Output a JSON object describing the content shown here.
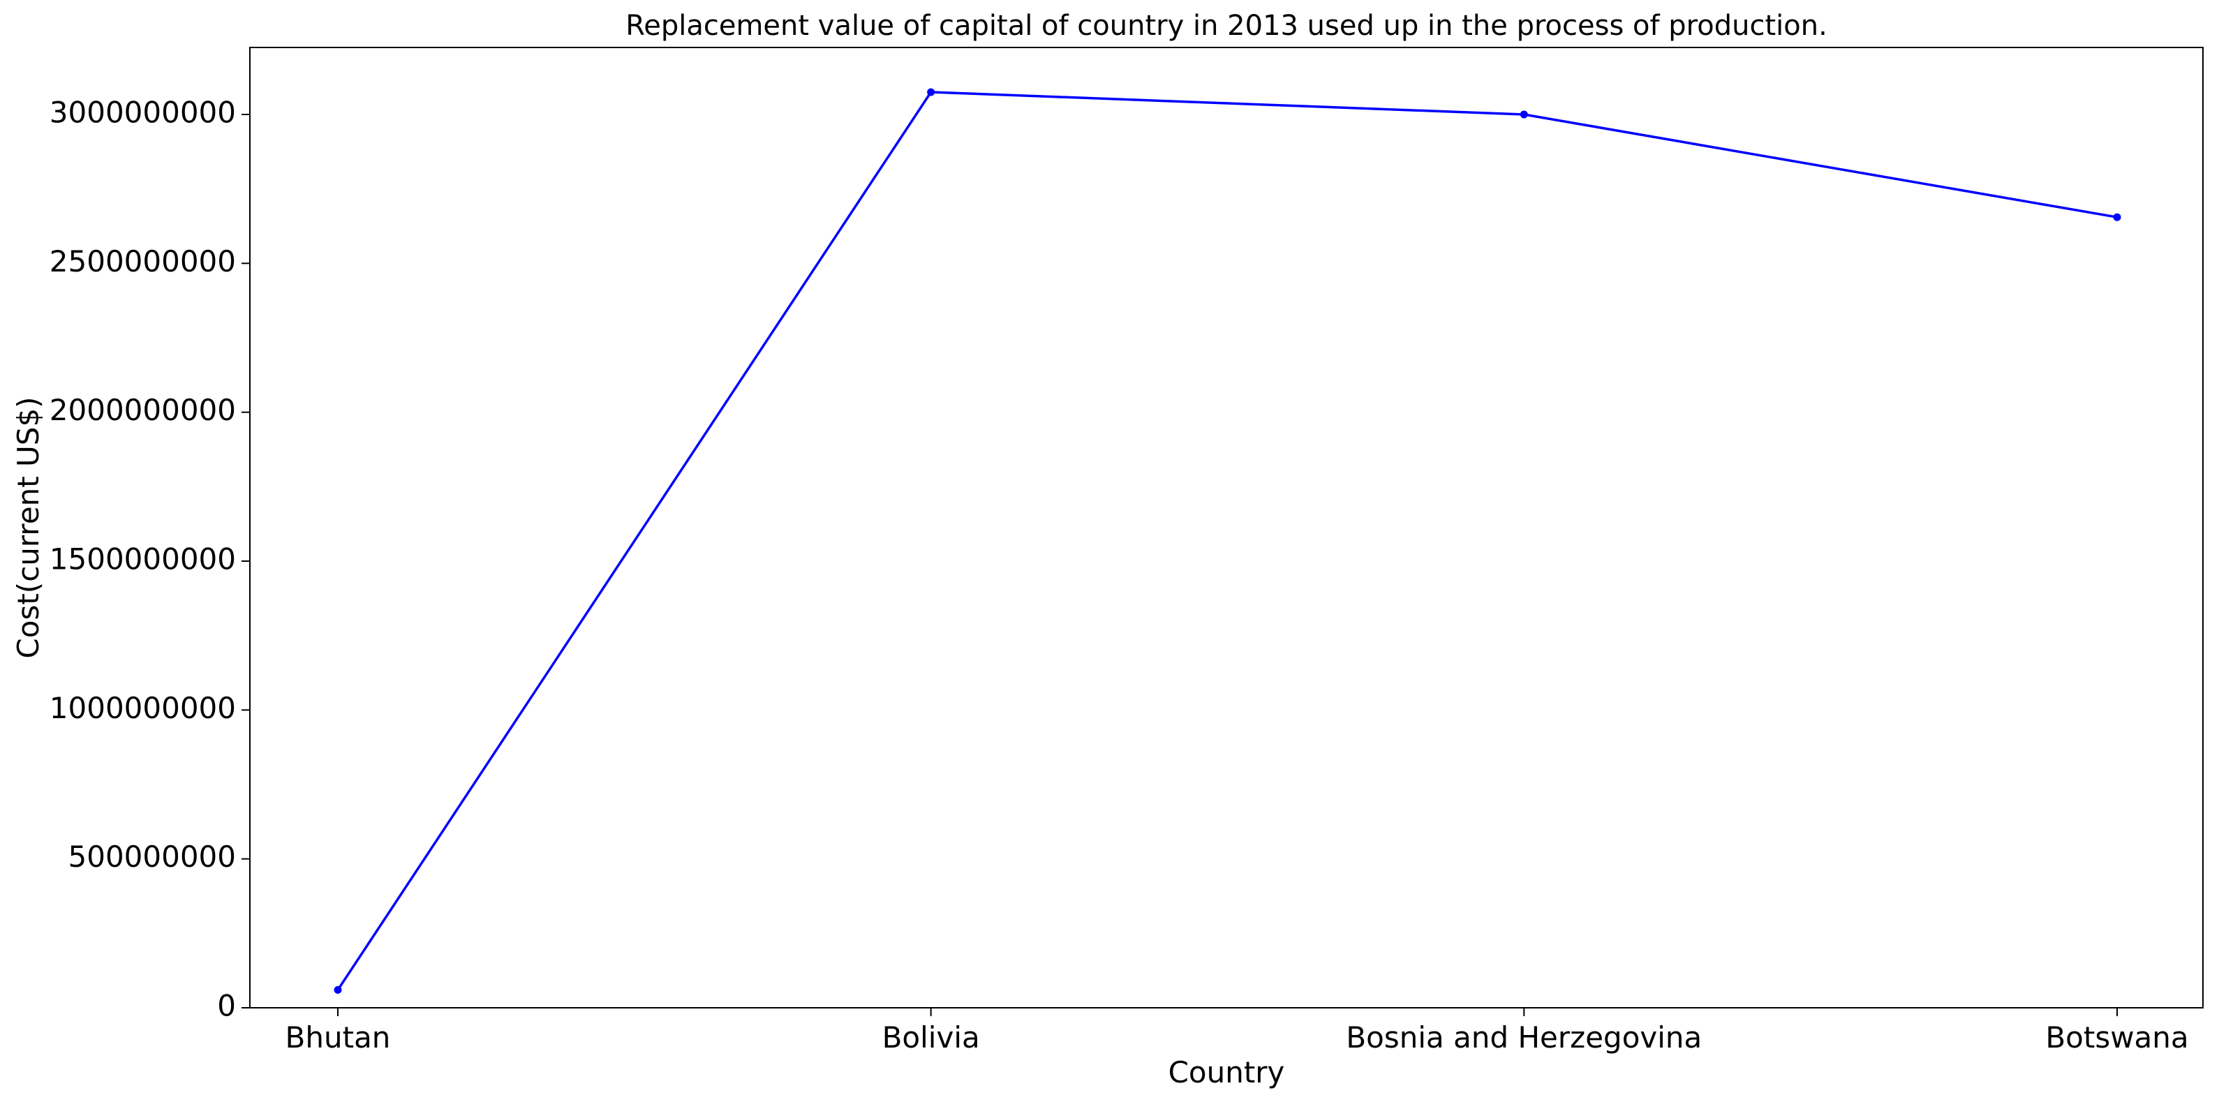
{
  "chart_data": {
    "type": "line",
    "title": "Replacement value of capital of country in 2013 used up in the process of production.",
    "xlabel": "Country",
    "ylabel": "Cost(current US$)",
    "categories": [
      "Bhutan",
      "Bolivia",
      "Bosnia and Herzegovina",
      "Botswana"
    ],
    "series": [
      {
        "values": [
          60000000,
          3075000000,
          3000000000,
          2655000000
        ],
        "color": "#0000ff",
        "marker": "dot"
      }
    ],
    "ylim": [
      0,
      3225000000
    ],
    "yticks": [
      0,
      500000000,
      1000000000,
      1500000000,
      2000000000,
      2500000000,
      3000000000
    ],
    "ytick_labels": [
      "0",
      "500000000",
      "1000000000",
      "1500000000",
      "2000000000",
      "2500000000",
      "3000000000"
    ],
    "grid": false,
    "legend": "none"
  }
}
